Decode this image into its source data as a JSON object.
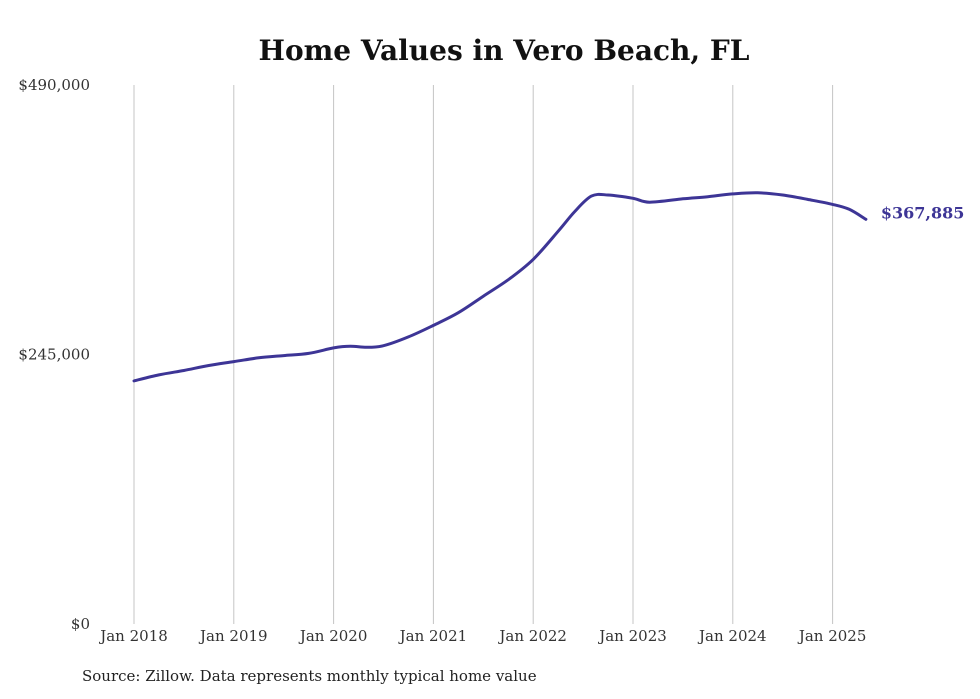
{
  "chart_data": {
    "type": "line",
    "title": "Home Values in Vero Beach, FL",
    "xlabel": "",
    "ylabel": "",
    "x_ticks": [
      "Jan 2018",
      "Jan 2019",
      "Jan 2020",
      "Jan 2021",
      "Jan 2022",
      "Jan 2023",
      "Jan 2024",
      "Jan 2025"
    ],
    "y_ticks": [
      "$0",
      "$245,000",
      "$490,000"
    ],
    "ylim": [
      0,
      490000
    ],
    "xlim": [
      "2018-01",
      "2025-05"
    ],
    "grid": "vertical",
    "line_color": "#3d3596",
    "series": [
      {
        "x": [
          "2018-01",
          "2018-04",
          "2018-07",
          "2018-10",
          "2019-01",
          "2019-04",
          "2019-07",
          "2019-10",
          "2020-01",
          "2020-03",
          "2020-05",
          "2020-07",
          "2020-10",
          "2021-01",
          "2021-04",
          "2021-07",
          "2021-10",
          "2022-01",
          "2022-04",
          "2022-06",
          "2022-08",
          "2022-10",
          "2023-01",
          "2023-03",
          "2023-07",
          "2023-10",
          "2024-01",
          "2024-04",
          "2024-07",
          "2024-10",
          "2025-01",
          "2025-03",
          "2025-05"
        ],
        "values": [
          221000,
          226500,
          230500,
          235000,
          238500,
          242000,
          244000,
          246000,
          251000,
          252500,
          251500,
          253000,
          261000,
          271500,
          283000,
          298000,
          313000,
          331500,
          357000,
          375000,
          389000,
          390000,
          387000,
          383500,
          386500,
          388500,
          391000,
          392000,
          390000,
          386000,
          381500,
          377000,
          367885
        ]
      }
    ],
    "end_label": "$367,885"
  },
  "source_text": "Source: Zillow. Data represents monthly typical home value"
}
